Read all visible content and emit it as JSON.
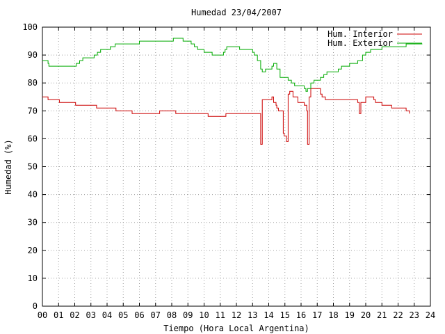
{
  "chart_data": {
    "type": "line",
    "title": "Humedad 23/04/2007",
    "xlabel": "Tiempo (Hora Local Argentina)",
    "ylabel": "Humedad (%)",
    "xlim": [
      0,
      24
    ],
    "ylim": [
      0,
      100
    ],
    "grid": true,
    "legend_position": "top-right",
    "x_tick_labels": [
      "00",
      "01",
      "02",
      "03",
      "04",
      "05",
      "06",
      "07",
      "08",
      "09",
      "10",
      "11",
      "12",
      "13",
      "14",
      "15",
      "16",
      "17",
      "18",
      "19",
      "20",
      "21",
      "22",
      "23",
      "24"
    ],
    "y_tick_labels": [
      "0",
      "10",
      "20",
      "30",
      "40",
      "50",
      "60",
      "70",
      "80",
      "90",
      "100"
    ],
    "series": [
      {
        "name": "Hum. Interior",
        "color": "#cc0000",
        "x": [
          0,
          0.3,
          0.35,
          1.0,
          1.05,
          2.0,
          2.05,
          3.3,
          3.35,
          4.5,
          4.55,
          5.5,
          5.55,
          7.2,
          7.25,
          8.2,
          8.25,
          9.0,
          9.05,
          10.2,
          10.25,
          11.0,
          11.05,
          11.3,
          11.35,
          13.3,
          13.5,
          13.6,
          13.7,
          14.1,
          14.2,
          14.3,
          14.4,
          14.45,
          14.5,
          14.6,
          14.9,
          14.95,
          15.0,
          15.1,
          15.2,
          15.3,
          15.5,
          15.8,
          15.9,
          16.1,
          16.2,
          16.35,
          16.4,
          16.5,
          16.6,
          16.7,
          17.1,
          17.2,
          17.3,
          17.5,
          18.5,
          19.4,
          19.5,
          19.6,
          19.7,
          20.0,
          20.1,
          20.5,
          20.6,
          20.9,
          21.0,
          21.5,
          21.6,
          22.4,
          22.5,
          22.7
        ],
        "y": [
          75,
          75,
          74,
          74,
          73,
          73,
          72,
          72,
          71,
          71,
          70,
          70,
          69,
          69,
          70,
          70,
          69,
          69,
          69,
          69,
          68,
          68,
          68,
          68,
          69,
          69,
          58,
          74,
          74,
          74,
          75,
          73,
          73,
          72,
          71,
          70,
          62,
          61,
          61,
          59,
          76,
          77,
          75,
          73,
          73,
          73,
          72,
          70,
          58,
          75,
          78,
          78,
          78,
          76,
          75,
          74,
          74,
          74,
          73,
          69,
          73,
          75,
          75,
          74,
          73,
          73,
          72,
          72,
          71,
          71,
          70,
          69
        ]
      },
      {
        "name": "Hum. Exterior",
        "color": "#00aa00",
        "x": [
          0,
          0.3,
          0.35,
          0.4,
          0.5,
          1.0,
          1.5,
          2.0,
          2.1,
          2.3,
          2.5,
          3.0,
          3.2,
          3.4,
          3.6,
          3.8,
          4.2,
          4.5,
          5.0,
          5.5,
          6.0,
          7.0,
          8.0,
          8.1,
          8.6,
          8.7,
          9.0,
          9.2,
          9.4,
          9.6,
          10.0,
          10.3,
          10.5,
          11.0,
          11.2,
          11.3,
          11.4,
          11.6,
          11.8,
          12.0,
          12.2,
          12.5,
          12.8,
          13.0,
          13.1,
          13.3,
          13.5,
          13.6,
          13.8,
          14.0,
          14.1,
          14.2,
          14.3,
          14.5,
          14.7,
          15.0,
          15.2,
          15.4,
          15.6,
          15.8,
          16.0,
          16.2,
          16.3,
          16.4,
          16.6,
          16.8,
          17.0,
          17.2,
          17.4,
          17.6,
          18.0,
          18.3,
          18.5,
          19.0,
          19.3,
          19.5,
          19.8,
          20.0,
          20.3,
          20.6,
          21.0,
          21.5,
          22.0,
          22.5,
          23.0,
          23.5
        ],
        "y": [
          88,
          88,
          87,
          86,
          86,
          86,
          86,
          86,
          87,
          88,
          89,
          89,
          90,
          91,
          92,
          92,
          93,
          94,
          94,
          94,
          95,
          95,
          95,
          96,
          96,
          95,
          95,
          94,
          93,
          92,
          91,
          91,
          90,
          90,
          91,
          92,
          93,
          93,
          93,
          93,
          92,
          92,
          92,
          91,
          90,
          88,
          85,
          84,
          85,
          85,
          85,
          86,
          87,
          85,
          82,
          82,
          81,
          80,
          79,
          79,
          79,
          78,
          77,
          78,
          80,
          81,
          81,
          82,
          83,
          84,
          84,
          85,
          86,
          87,
          87,
          88,
          90,
          91,
          92,
          92,
          93,
          93,
          93,
          94,
          94,
          94
        ]
      }
    ]
  }
}
